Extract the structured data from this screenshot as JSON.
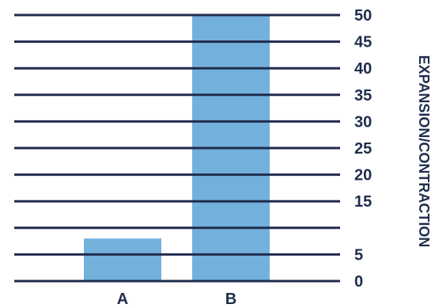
{
  "chart_data": {
    "type": "bar",
    "categories": [
      "A",
      "B"
    ],
    "values": [
      8,
      50
    ],
    "title": "",
    "xlabel": "",
    "ylabel": "EXPANSION/CONTRACTION",
    "ylim": [
      0,
      50
    ],
    "yticks": [
      0,
      5,
      15,
      20,
      25,
      30,
      35,
      40,
      45,
      50
    ],
    "grid": true,
    "legend": "none",
    "bar_color": "#74b0dc",
    "grid_color": "#1f2d4d",
    "text_color": "#1f2d4d"
  }
}
